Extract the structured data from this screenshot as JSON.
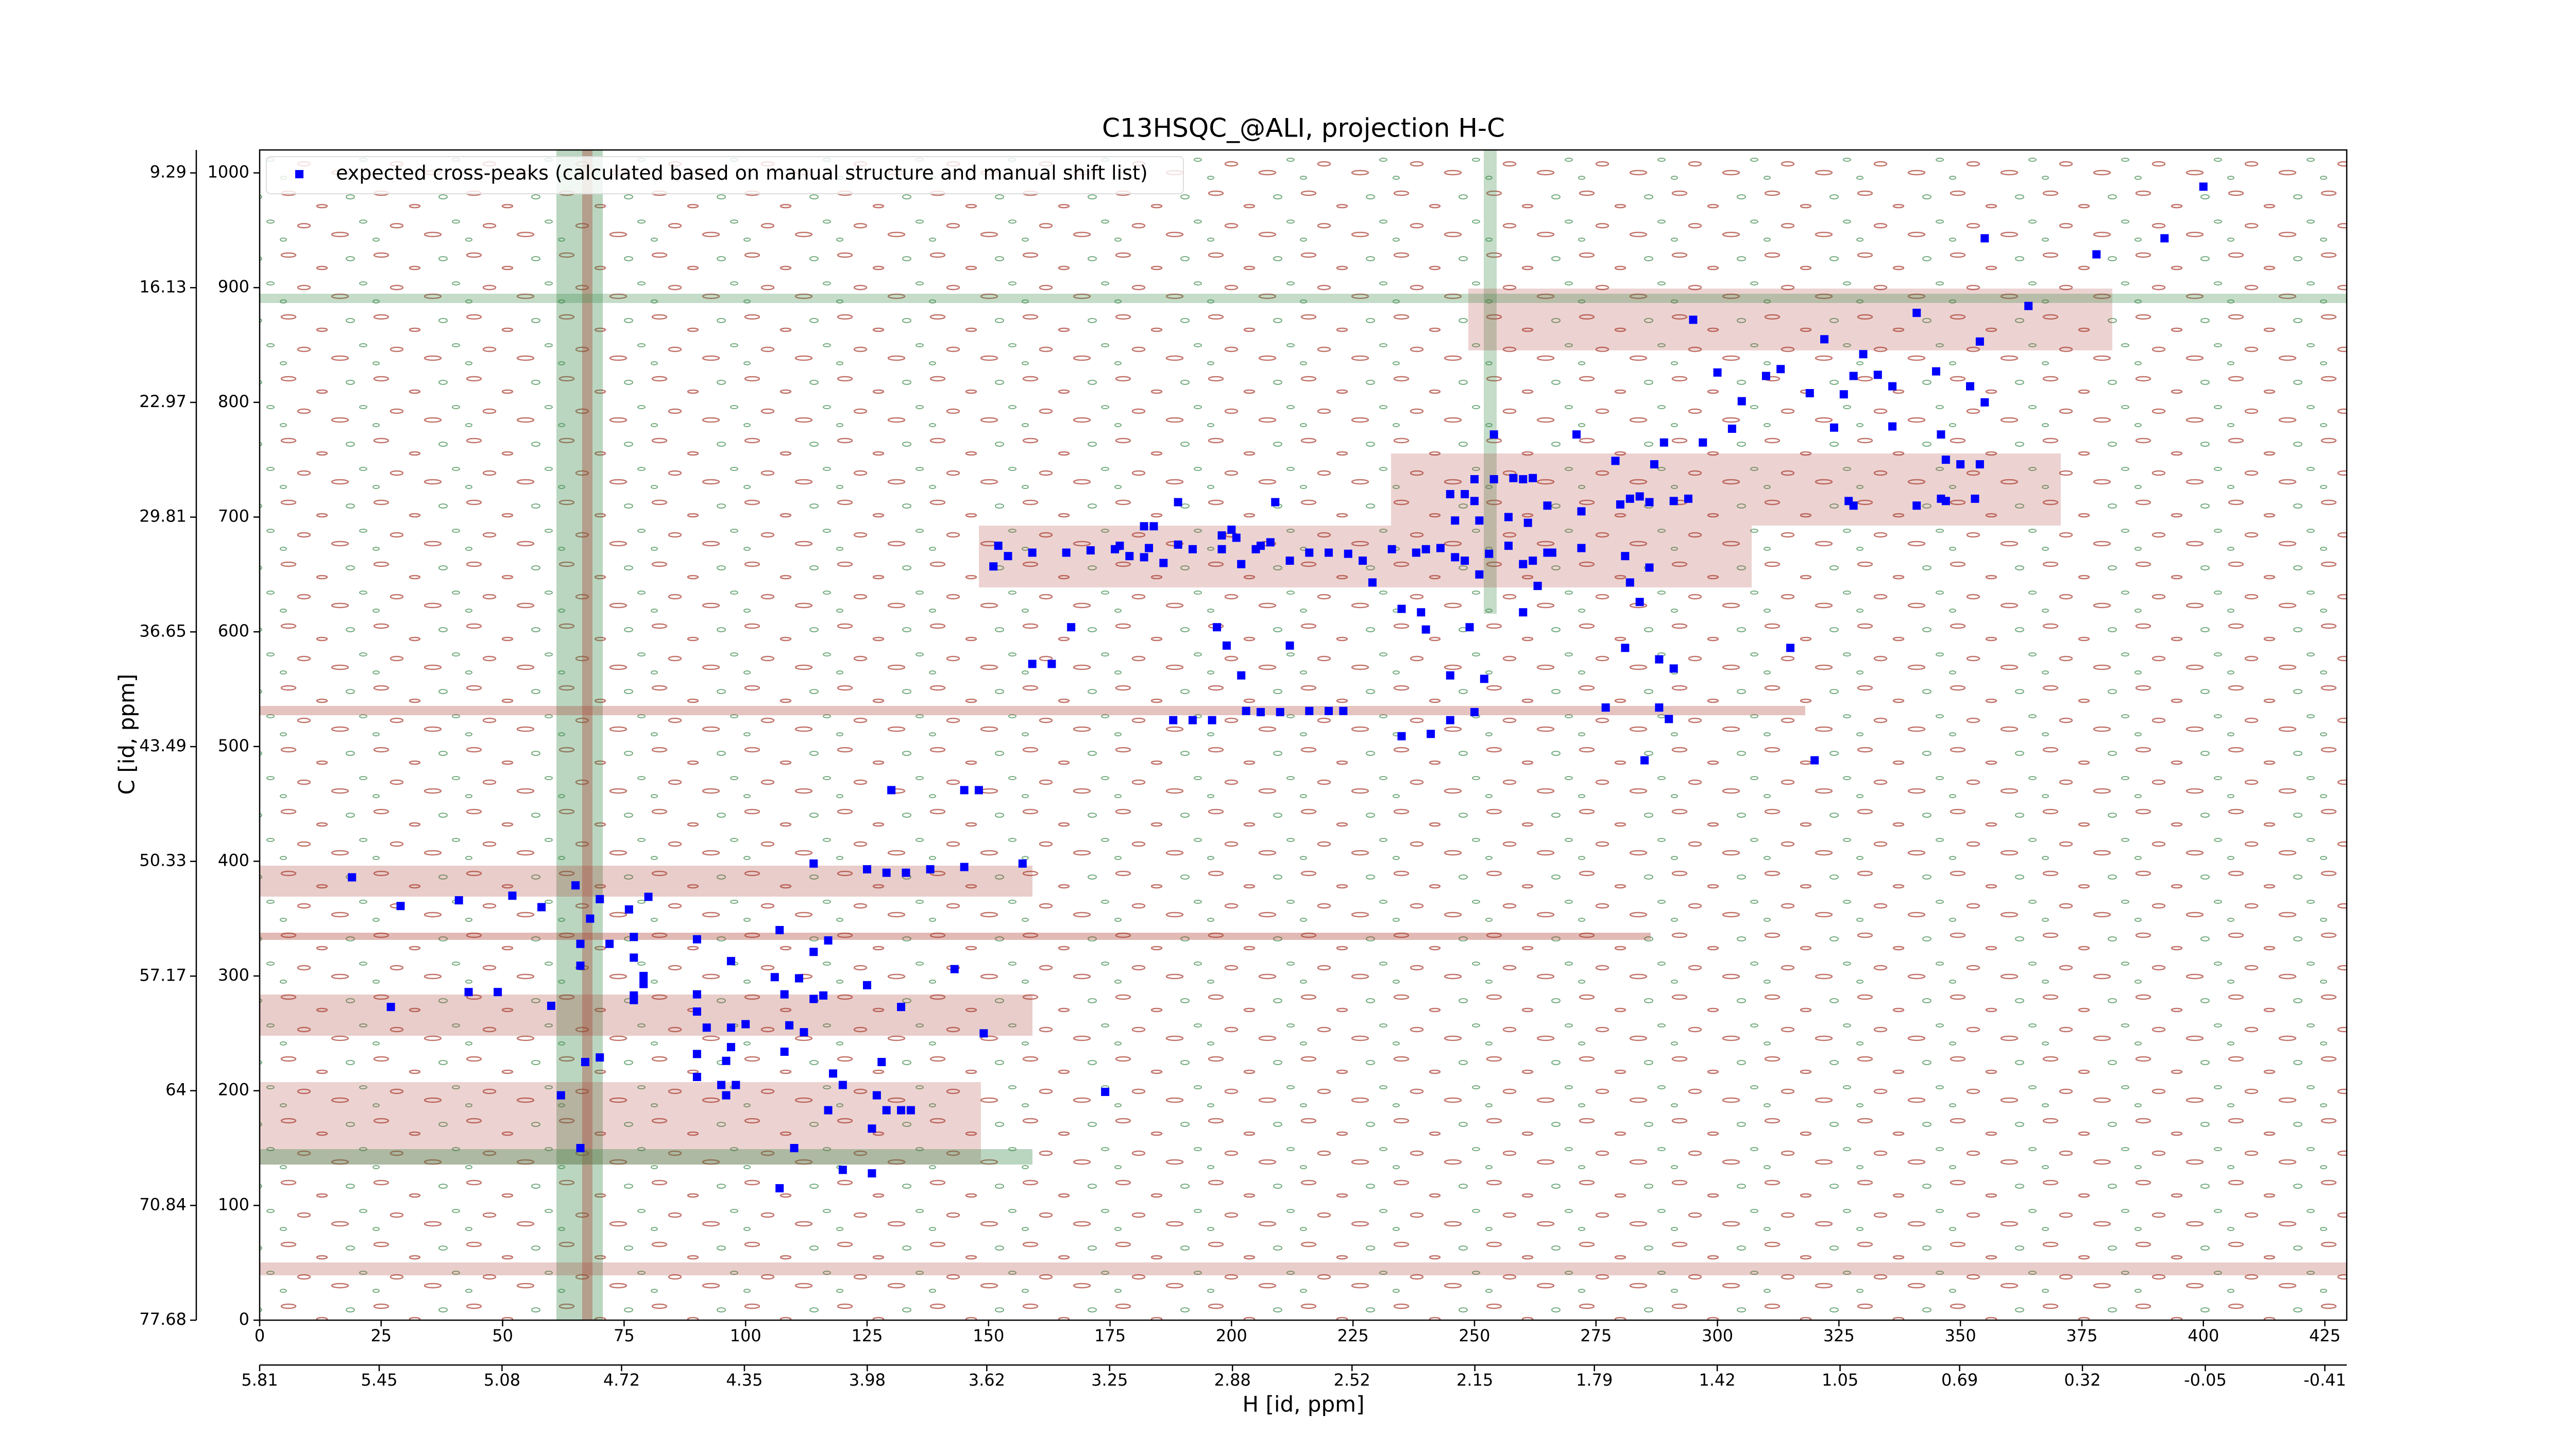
{
  "chart_data": {
    "type": "scatter",
    "title": "C13HSQC_@ALI, projection H-C",
    "xlabel": "H [id, ppm]",
    "ylabel": "C [id, ppm]",
    "xlim": [
      0,
      429.5
    ],
    "ylim": [
      0,
      1020
    ],
    "xticks": [
      0,
      25,
      50,
      75,
      100,
      125,
      150,
      175,
      200,
      225,
      250,
      275,
      300,
      325,
      350,
      375,
      400,
      425
    ],
    "yticks": [
      0,
      100,
      200,
      300,
      400,
      500,
      600,
      700,
      800,
      900,
      1000
    ],
    "x2lim": [
      5.81,
      -0.476
    ],
    "x2ticks": [
      5.81,
      5.45,
      5.08,
      4.72,
      4.35,
      3.98,
      3.62,
      3.25,
      2.88,
      2.52,
      2.15,
      1.79,
      1.42,
      1.05,
      0.69,
      0.32,
      -0.05,
      -0.41
    ],
    "y2lim": [
      77.68,
      7.92
    ],
    "y2ticks": [
      77.68,
      70.84,
      64.0,
      57.17,
      50.33,
      43.49,
      36.65,
      29.81,
      22.97,
      16.13,
      9.29
    ],
    "legend": "upper left",
    "series": [
      {
        "name": "expected cross-peaks (calculated based on manual structure and manual shift list)",
        "color": "#0000ff",
        "x": [
          400,
          392,
          378,
          355,
          364,
          341,
          295,
          322,
          354,
          300,
          310,
          313,
          319,
          326,
          328,
          330,
          333,
          336,
          345,
          352,
          355,
          305,
          324,
          336,
          303,
          297,
          289,
          346,
          347,
          350,
          354,
          279,
          287,
          271,
          254,
          250,
          254,
          258,
          260,
          262,
          245,
          248,
          250,
          246,
          251,
          257,
          261,
          265,
          272,
          280,
          282,
          284,
          286,
          294,
          327,
          328,
          341,
          346,
          347,
          353,
          291,
          152,
          151,
          154,
          159,
          166,
          171,
          176,
          177,
          179,
          182,
          183,
          186,
          189,
          192,
          198,
          201,
          202,
          205,
          206,
          208,
          212,
          216,
          220,
          224,
          227,
          229,
          233,
          238,
          240,
          243,
          246,
          248,
          251,
          253,
          257,
          260,
          262,
          263,
          265,
          266,
          272,
          281,
          282,
          286,
          284,
          260,
          263,
          235,
          239,
          240,
          249,
          189,
          209,
          184,
          182,
          198,
          200,
          167,
          197,
          199,
          212,
          315,
          281,
          288,
          291,
          159,
          163,
          202,
          245,
          252,
          277,
          288,
          290,
          188,
          192,
          196,
          203,
          206,
          210,
          216,
          220,
          223,
          245,
          250,
          235,
          241,
          285,
          320,
          130,
          145,
          148,
          114,
          125,
          129,
          133,
          138,
          145,
          157,
          19,
          29,
          41,
          52,
          58,
          65,
          68,
          70,
          76,
          80,
          66,
          72,
          77,
          77,
          66,
          97,
          90,
          107,
          117,
          114,
          106,
          111,
          108,
          114,
          116,
          125,
          132,
          143,
          79,
          79,
          77,
          77,
          90,
          90,
          92,
          97,
          100,
          109,
          112,
          27,
          43,
          49,
          60,
          90,
          96,
          97,
          108,
          128,
          90,
          95,
          98,
          118,
          120,
          67,
          70,
          62,
          96,
          117,
          127,
          129,
          132,
          134,
          174,
          126,
          149,
          66,
          110,
          120,
          126,
          107
        ],
        "y": [
          988,
          943,
          929,
          943,
          884,
          878,
          872,
          855,
          853,
          826,
          823,
          829,
          808,
          807,
          823,
          842,
          824,
          814,
          827,
          814,
          800,
          801,
          778,
          779,
          777,
          765,
          765,
          772,
          750,
          746,
          746,
          749,
          746,
          772,
          772,
          733,
          733,
          734,
          733,
          734,
          720,
          720,
          714,
          697,
          697,
          700,
          695,
          710,
          705,
          711,
          716,
          718,
          713,
          716,
          714,
          710,
          710,
          716,
          714,
          716,
          714,
          675,
          657,
          666,
          669,
          669,
          671,
          672,
          675,
          666,
          665,
          673,
          660,
          676,
          672,
          672,
          682,
          659,
          672,
          675,
          678,
          662,
          669,
          669,
          668,
          662,
          643,
          672,
          669,
          672,
          673,
          665,
          662,
          650,
          668,
          675,
          659,
          662,
          640,
          669,
          669,
          673,
          666,
          643,
          656,
          626,
          617,
          640,
          620,
          617,
          602,
          604,
          713,
          713,
          692,
          692,
          684,
          689,
          604,
          604,
          588,
          588,
          586,
          586,
          576,
          568,
          572,
          572,
          562,
          562,
          559,
          534,
          534,
          524,
          523,
          523,
          523,
          531,
          530,
          530,
          531,
          531,
          531,
          523,
          530,
          509,
          511,
          488,
          488,
          462,
          462,
          462,
          398,
          393,
          390,
          390,
          393,
          395,
          398,
          386,
          361,
          366,
          370,
          360,
          379,
          350,
          367,
          358,
          369,
          328,
          328,
          334,
          316,
          309,
          313,
          332,
          340,
          331,
          321,
          299,
          298,
          284,
          280,
          283,
          292,
          273,
          306,
          300,
          293,
          283,
          279,
          284,
          269,
          255,
          255,
          258,
          257,
          251,
          273,
          286,
          286,
          274,
          232,
          226,
          238,
          234,
          225,
          212,
          205,
          205,
          215,
          205,
          225,
          229,
          196,
          196,
          183,
          196,
          183,
          183,
          183,
          199,
          167,
          250,
          150,
          150,
          131,
          128,
          115
        ]
      }
    ]
  }
}
